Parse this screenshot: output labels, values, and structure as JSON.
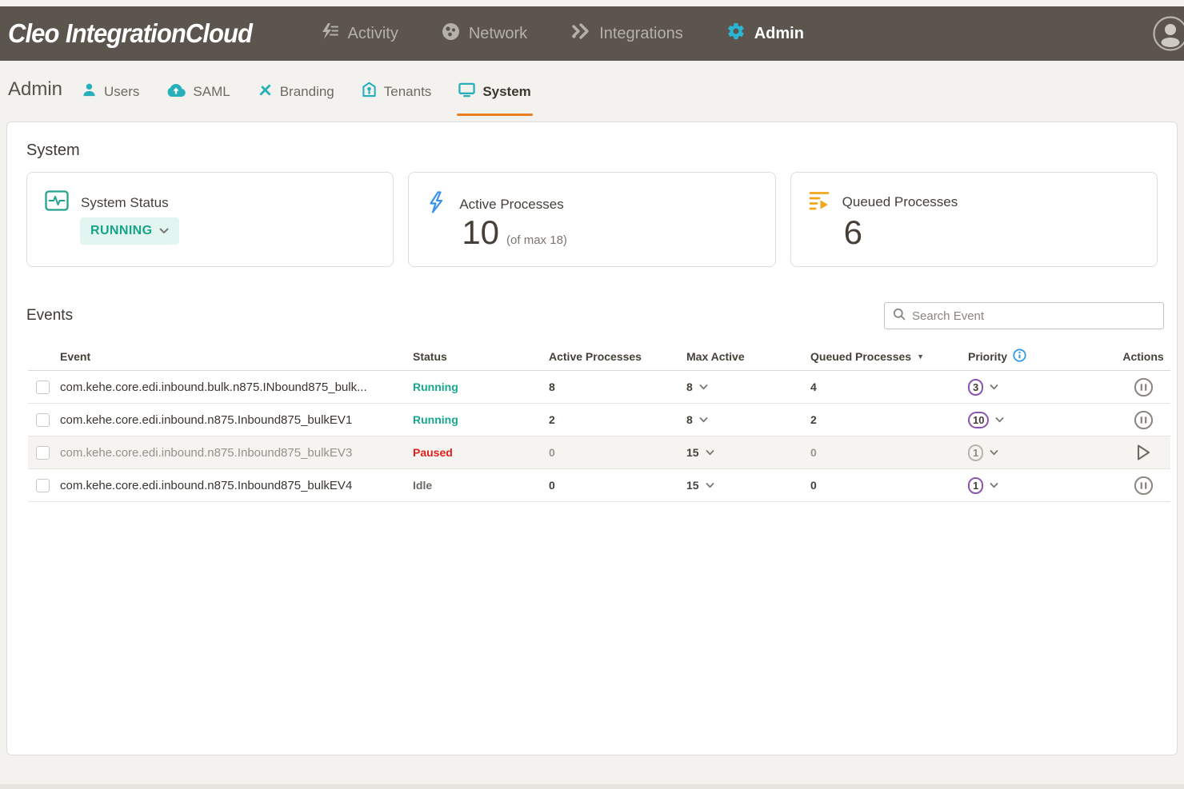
{
  "topnav": {
    "brand": {
      "bold": "Cleo",
      "rest": "IntegrationCloud"
    },
    "items": [
      {
        "label": "Activity",
        "active": false
      },
      {
        "label": "Network",
        "active": false
      },
      {
        "label": "Integrations",
        "active": false
      },
      {
        "label": "Admin",
        "active": true
      }
    ]
  },
  "subnav": {
    "title": "Admin",
    "items": [
      {
        "label": "Users",
        "active": false
      },
      {
        "label": "SAML",
        "active": false
      },
      {
        "label": "Branding",
        "active": false
      },
      {
        "label": "Tenants",
        "active": false
      },
      {
        "label": "System",
        "active": true
      }
    ]
  },
  "system": {
    "heading": "System",
    "cards": [
      {
        "title": "System Status",
        "badge": "RUNNING"
      },
      {
        "title": "Active Processes",
        "value": "10",
        "suffix": "(of max 18)"
      },
      {
        "title": "Queued Processes",
        "value": "6"
      }
    ]
  },
  "events": {
    "heading": "Events",
    "search_placeholder": "Search Event",
    "columns": [
      "Event",
      "Status",
      "Active Processes",
      "Max Active",
      "Queued Processes",
      "Priority",
      "Actions"
    ],
    "queued_sorted_desc": true,
    "rows": [
      {
        "event": "com.kehe.core.edi.inbound.bulk.n875.INbound875_bulk...",
        "status": "Running",
        "active": "8",
        "max": "8",
        "queued": "4",
        "priority": "3",
        "action": "pause",
        "muted": false
      },
      {
        "event": "com.kehe.core.edi.inbound.n875.Inbound875_bulkEV1",
        "status": "Running",
        "active": "2",
        "max": "8",
        "queued": "2",
        "priority": "10",
        "action": "pause",
        "muted": false
      },
      {
        "event": "com.kehe.core.edi.inbound.n875.Inbound875_bulkEV3",
        "status": "Paused",
        "active": "0",
        "max": "15",
        "queued": "0",
        "priority": "1",
        "action": "play",
        "muted": true
      },
      {
        "event": "com.kehe.core.edi.inbound.n875.Inbound875_bulkEV4",
        "status": "Idle",
        "active": "0",
        "max": "15",
        "queued": "0",
        "priority": "1",
        "action": "pause",
        "muted": false
      }
    ]
  },
  "colors": {
    "topbar_bg": "#5b554e",
    "teal_icon": "#28b0ba",
    "status_teal": "#17a389",
    "paused_red": "#e01f1f",
    "priority_purple": "#8a56ad",
    "active_blue": "#3b93e8",
    "queued_orange": "#f2a71b",
    "tab_underline_orange": "#e87e22",
    "info_blue": "#3399e6"
  }
}
